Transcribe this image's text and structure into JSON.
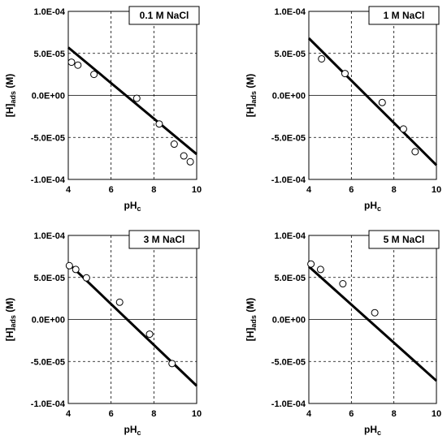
{
  "chart_data": [
    {
      "type": "scatter",
      "title": "0.1 M NaCl",
      "xlabel": "pH",
      "xlabel_sub": "c",
      "ylabel": "[H]",
      "ylabel_sub": "ads",
      "ylabel_unit": " (M)",
      "xlim": [
        4,
        10
      ],
      "ylim": [
        -0.0001,
        0.0001
      ],
      "xticks": [
        4,
        6,
        8,
        10
      ],
      "xtick_labels": [
        "4",
        "6",
        "8",
        "10"
      ],
      "yticks": [
        0.0001,
        5e-05,
        0,
        -5e-05,
        -0.0001
      ],
      "ytick_labels": [
        "1.0E-04",
        "5.0E-05",
        "0.0E+00",
        "-5.0E-05",
        "-1.0E-04"
      ],
      "grid": "dashed vertical at x = 6 and 8, dashed horizontal at y = ±5.0E-05, solid line at y = 0",
      "points": [
        [
          4.15,
          3.95e-05
        ],
        [
          4.45,
          3.6e-05
        ],
        [
          5.2,
          2.5e-05
        ],
        [
          7.2,
          -3.5e-06
        ],
        [
          8.25,
          -3.4e-05
        ],
        [
          8.95,
          -5.8e-05
        ],
        [
          9.4,
          -7.2e-05
        ],
        [
          9.7,
          -7.9e-05
        ]
      ],
      "fit_line": [
        [
          4,
          5.7e-05
        ],
        [
          10,
          -7e-05
        ]
      ]
    },
    {
      "type": "scatter",
      "title": "1 M NaCl",
      "xlabel": "pH",
      "xlabel_sub": "c",
      "ylabel": "[H]",
      "ylabel_sub": "ads",
      "ylabel_unit": " (M)",
      "xlim": [
        4,
        10
      ],
      "ylim": [
        -0.0001,
        0.0001
      ],
      "xticks": [
        4,
        6,
        8,
        10
      ],
      "xtick_labels": [
        "4",
        "6",
        "8",
        "10"
      ],
      "yticks": [
        0.0001,
        5e-05,
        0,
        -5e-05,
        -0.0001
      ],
      "ytick_labels": [
        "1.0E-04",
        "5.0E-05",
        "0.0E+00",
        "-5.0E-05",
        "-1.0E-04"
      ],
      "grid": "dashed vertical at x = 6 and 8, dashed horizontal at y = ±5.0E-05, solid line at y = 0",
      "points": [
        [
          4.6,
          4.35e-05
        ],
        [
          5.7,
          2.6e-05
        ],
        [
          7.45,
          -8.5e-06
        ],
        [
          8.45,
          -4e-05
        ],
        [
          9.0,
          -6.7e-05
        ]
      ],
      "fit_line": [
        [
          4,
          6.8e-05
        ],
        [
          10,
          -8.3e-05
        ]
      ]
    },
    {
      "type": "scatter",
      "title": "3 M NaCl",
      "xlabel": "pH",
      "xlabel_sub": "c",
      "ylabel": "[H]",
      "ylabel_sub": "ads",
      "ylabel_unit": " (M)",
      "xlim": [
        4,
        10
      ],
      "ylim": [
        -0.0001,
        0.0001
      ],
      "xticks": [
        4,
        6,
        8,
        10
      ],
      "xtick_labels": [
        "4",
        "6",
        "8",
        "10"
      ],
      "yticks": [
        0.0001,
        5e-05,
        0,
        -5e-05,
        -0.0001
      ],
      "ytick_labels": [
        "1.0E-04",
        "5.0E-05",
        "0.0E+00",
        "-5.0E-05",
        "-1.0E-04"
      ],
      "grid": "dashed vertical at x = 6 and 8, dashed horizontal at y = ±5.0E-05, solid line at y = 0",
      "points": [
        [
          4.05,
          6.4e-05
        ],
        [
          4.35,
          5.95e-05
        ],
        [
          4.85,
          4.95e-05
        ],
        [
          6.4,
          2.05e-05
        ],
        [
          7.8,
          -1.75e-05
        ],
        [
          8.85,
          -5.25e-05
        ]
      ],
      "fit_line": [
        [
          4,
          6.7e-05
        ],
        [
          10,
          -7.9e-05
        ]
      ]
    },
    {
      "type": "scatter",
      "title": "5 M NaCl",
      "xlabel": "pH",
      "xlabel_sub": "c",
      "ylabel": "[H]",
      "ylabel_sub": "ads",
      "ylabel_unit": " (M)",
      "xlim": [
        4,
        10
      ],
      "ylim": [
        -0.0001,
        0.0001
      ],
      "xticks": [
        4,
        6,
        8,
        10
      ],
      "xtick_labels": [
        "4",
        "6",
        "8",
        "10"
      ],
      "yticks": [
        0.0001,
        5e-05,
        0,
        -5e-05,
        -0.0001
      ],
      "ytick_labels": [
        "1.0E-04",
        "5.0E-05",
        "0.0E+00",
        "-5.0E-05",
        "-1.0E-04"
      ],
      "grid": "dashed vertical at x = 6 and 8, dashed horizontal at y = ±5.0E-05, solid line at y = 0",
      "points": [
        [
          4.1,
          6.6e-05
        ],
        [
          4.55,
          5.95e-05
        ],
        [
          5.6,
          4.25e-05
        ],
        [
          7.1,
          8e-06
        ]
      ],
      "fit_line": [
        [
          4,
          6.3e-05
        ],
        [
          10,
          -7.3e-05
        ]
      ]
    }
  ]
}
